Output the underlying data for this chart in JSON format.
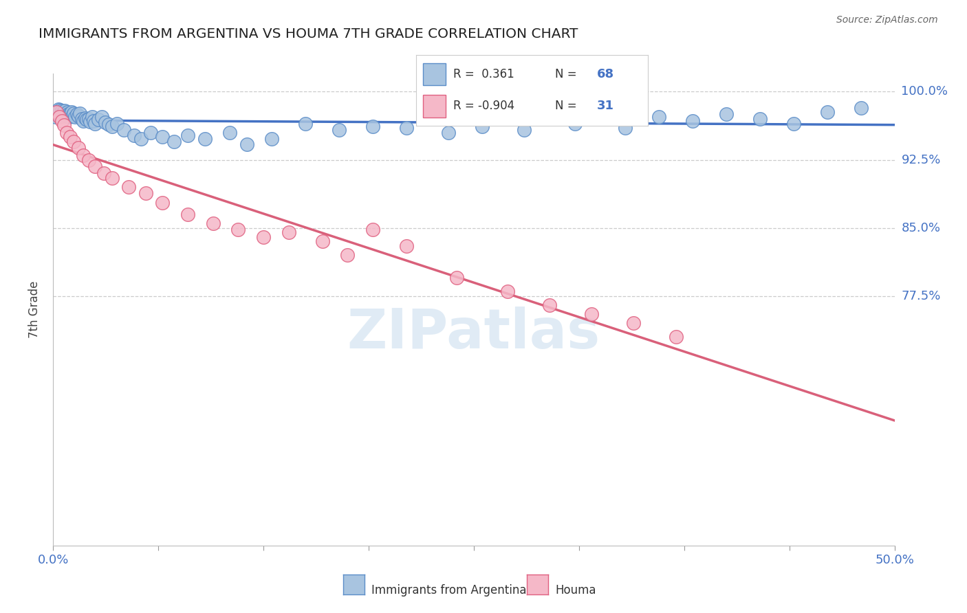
{
  "title": "IMMIGRANTS FROM ARGENTINA VS HOUMA 7TH GRADE CORRELATION CHART",
  "source": "Source: ZipAtlas.com",
  "ylabel": "7th Grade",
  "legend_label1": "Immigrants from Argentina",
  "legend_label2": "Houma",
  "R1": 0.361,
  "N1": 68,
  "R2": -0.904,
  "N2": 31,
  "blue_fill": "#A8C4E0",
  "blue_edge": "#5B8DC8",
  "pink_fill": "#F5B8C8",
  "pink_edge": "#E06080",
  "blue_line_color": "#4472C4",
  "pink_line_color": "#D9607A",
  "watermark": "ZIPatlas",
  "xlim": [
    0.0,
    50.0
  ],
  "ylim": [
    50.0,
    102.0
  ],
  "yticks": [
    77.5,
    85.0,
    92.5,
    100.0
  ],
  "y_right_labels": {
    "100.0%": 100.0,
    "92.5%": 92.5,
    "85.0%": 85.0,
    "77.5%": 77.5
  },
  "blue_x": [
    0.15,
    0.2,
    0.25,
    0.3,
    0.35,
    0.4,
    0.45,
    0.5,
    0.55,
    0.6,
    0.65,
    0.7,
    0.75,
    0.8,
    0.85,
    0.9,
    0.95,
    1.0,
    1.05,
    1.1,
    1.15,
    1.2,
    1.3,
    1.4,
    1.5,
    1.6,
    1.7,
    1.8,
    1.9,
    2.0,
    2.1,
    2.2,
    2.3,
    2.4,
    2.5,
    2.7,
    2.9,
    3.1,
    3.3,
    3.5,
    3.8,
    4.2,
    4.8,
    5.2,
    5.8,
    6.5,
    7.2,
    8.0,
    9.0,
    10.5,
    11.5,
    13.0,
    15.0,
    17.0,
    19.0,
    21.0,
    23.5,
    25.5,
    28.0,
    31.0,
    34.0,
    36.0,
    38.0,
    40.0,
    42.0,
    44.0,
    46.0,
    48.0
  ],
  "blue_y": [
    97.2,
    97.8,
    97.5,
    98.1,
    97.6,
    98.0,
    97.3,
    97.9,
    97.5,
    97.8,
    97.4,
    97.9,
    97.6,
    97.3,
    97.8,
    97.5,
    97.2,
    97.6,
    97.4,
    97.8,
    97.3,
    97.6,
    97.2,
    97.5,
    97.3,
    97.6,
    97.0,
    96.8,
    97.1,
    96.9,
    97.0,
    96.7,
    97.2,
    96.8,
    96.5,
    96.9,
    97.2,
    96.6,
    96.4,
    96.2,
    96.5,
    95.8,
    95.2,
    94.8,
    95.5,
    95.0,
    94.5,
    95.2,
    94.8,
    95.5,
    94.2,
    94.8,
    96.5,
    95.8,
    96.2,
    96.0,
    95.5,
    96.2,
    95.8,
    96.5,
    96.0,
    97.2,
    96.8,
    97.5,
    97.0,
    96.5,
    97.8,
    98.2
  ],
  "pink_x": [
    0.2,
    0.35,
    0.5,
    0.65,
    0.8,
    1.0,
    1.2,
    1.5,
    1.8,
    2.1,
    2.5,
    3.0,
    3.5,
    4.5,
    5.5,
    6.5,
    8.0,
    9.5,
    11.0,
    12.5,
    14.0,
    16.0,
    17.5,
    19.0,
    21.0,
    24.0,
    27.0,
    29.5,
    32.0,
    34.5,
    37.0
  ],
  "pink_y": [
    97.8,
    97.2,
    96.8,
    96.3,
    95.5,
    95.0,
    94.5,
    93.8,
    93.0,
    92.5,
    91.8,
    91.0,
    90.5,
    89.5,
    88.8,
    87.8,
    86.5,
    85.5,
    84.8,
    84.0,
    84.5,
    83.5,
    82.0,
    84.8,
    83.0,
    79.5,
    78.0,
    76.5,
    75.5,
    74.5,
    73.0
  ]
}
